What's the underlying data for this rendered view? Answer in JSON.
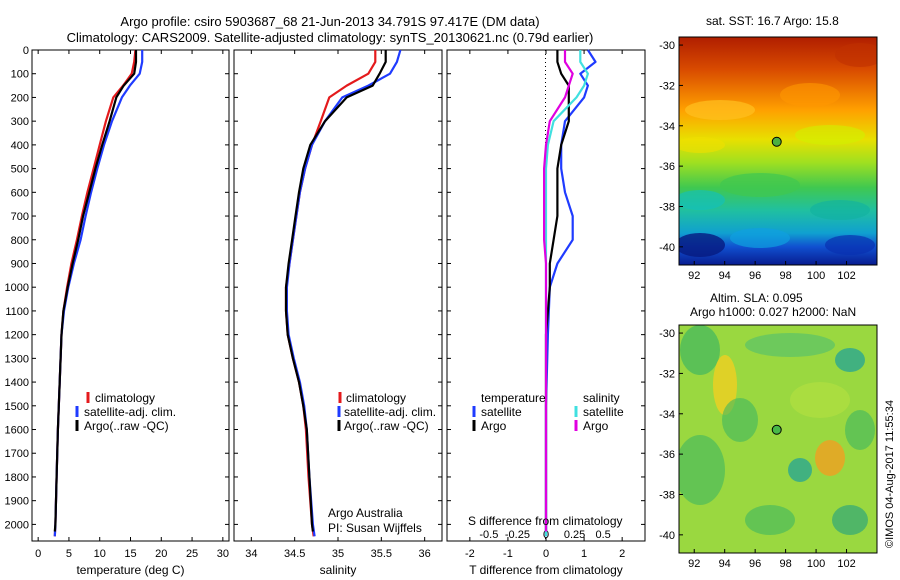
{
  "title_line1": "Argo profile: csiro 5903687_68 21-Jun-2013 34.791S 97.417E (DM data)",
  "title_line2": "Climatology: CARS2009. Satellite-adjusted climatology: synTS_20130621.nc (0.79d earlier)",
  "colors": {
    "climatology": "#e41a1c",
    "satellite": "#1f3bff",
    "argo": "#000000",
    "argo_salinity": "#e000e0",
    "satellite_salinity": "#40e0e0"
  },
  "legend_profile": [
    "climatology",
    "satellite-adj. clim.",
    "Argo(..raw -QC)"
  ],
  "credit_line1": "Argo Australia",
  "credit_line2": "PI: Susan Wijffels",
  "diff_legend": {
    "temperature": "temperature",
    "salinity": "salinity",
    "satellite": "satellite",
    "argo": "Argo"
  },
  "diff_xlabel_top": "S difference from climatology",
  "diff_xlabel_bottom": "T difference from climatology",
  "sst_title": "sat. SST: 16.7 Argo: 15.8",
  "sla_title_line1": "Altim. SLA: 0.095",
  "sla_title_line2": "Argo h1000: 0.027 h2000: NaN",
  "timestamp": "©IMOS 04-Aug-2017 11:55:34",
  "chart_data": [
    {
      "type": "line",
      "name": "temperature",
      "xlabel": "temperature (deg C)",
      "ylabel": "depth",
      "xlim": [
        -1,
        31
      ],
      "ylim": [
        2070,
        0
      ],
      "xticks": [
        0,
        5,
        10,
        15,
        20,
        25,
        30
      ],
      "yticks": [
        0,
        100,
        200,
        300,
        400,
        500,
        600,
        700,
        800,
        900,
        1000,
        1100,
        1200,
        1300,
        1400,
        1500,
        1600,
        1700,
        1800,
        1900,
        2000
      ],
      "series": [
        {
          "name": "climatology",
          "color": "#e41a1c",
          "points": [
            [
              15.8,
              0
            ],
            [
              15.6,
              50
            ],
            [
              15.2,
              100
            ],
            [
              13.8,
              150
            ],
            [
              12.2,
              200
            ],
            [
              11.0,
              300
            ],
            [
              10.0,
              400
            ],
            [
              9.0,
              500
            ],
            [
              8.0,
              600
            ],
            [
              7.1,
              700
            ],
            [
              6.3,
              800
            ],
            [
              5.4,
              900
            ],
            [
              4.7,
              1000
            ],
            [
              4.1,
              1100
            ],
            [
              3.8,
              1200
            ],
            [
              3.5,
              1400
            ],
            [
              3.2,
              1600
            ],
            [
              3.0,
              1800
            ],
            [
              2.8,
              2000
            ],
            [
              2.7,
              2050
            ]
          ]
        },
        {
          "name": "satellite-adj. clim.",
          "color": "#1f3bff",
          "points": [
            [
              16.9,
              0
            ],
            [
              16.9,
              50
            ],
            [
              16.5,
              100
            ],
            [
              14.9,
              150
            ],
            [
              13.6,
              200
            ],
            [
              12.0,
              300
            ],
            [
              10.7,
              400
            ],
            [
              9.6,
              500
            ],
            [
              8.6,
              600
            ],
            [
              7.7,
              700
            ],
            [
              6.9,
              800
            ],
            [
              5.8,
              900
            ],
            [
              4.9,
              1000
            ],
            [
              4.2,
              1100
            ],
            [
              3.8,
              1200
            ],
            [
              3.5,
              1400
            ],
            [
              3.2,
              1600
            ],
            [
              3.0,
              1800
            ],
            [
              2.8,
              2000
            ],
            [
              2.7,
              2050
            ]
          ]
        },
        {
          "name": "Argo(..raw -QC)",
          "color": "#000000",
          "points": [
            [
              15.9,
              0
            ],
            [
              15.9,
              50
            ],
            [
              15.6,
              100
            ],
            [
              13.9,
              150
            ],
            [
              12.7,
              200
            ],
            [
              11.6,
              300
            ],
            [
              10.4,
              400
            ],
            [
              9.3,
              500
            ],
            [
              8.3,
              600
            ],
            [
              7.3,
              700
            ],
            [
              6.5,
              800
            ],
            [
              5.6,
              900
            ],
            [
              4.8,
              1000
            ],
            [
              4.1,
              1100
            ],
            [
              3.8,
              1200
            ],
            [
              3.5,
              1400
            ],
            [
              3.2,
              1600
            ],
            [
              3.0,
              1800
            ],
            [
              2.8,
              2000
            ],
            [
              2.7,
              2030
            ]
          ]
        }
      ]
    },
    {
      "type": "line",
      "name": "salinity",
      "xlabel": "salinity",
      "ylabel": "depth",
      "xlim": [
        33.8,
        36.2
      ],
      "ylim": [
        2070,
        0
      ],
      "xticks": [
        34,
        34.5,
        35,
        35.5,
        36
      ],
      "series": [
        {
          "name": "climatology",
          "color": "#e41a1c",
          "points": [
            [
              35.43,
              0
            ],
            [
              35.43,
              50
            ],
            [
              35.35,
              100
            ],
            [
              35.1,
              150
            ],
            [
              34.9,
              200
            ],
            [
              34.8,
              300
            ],
            [
              34.7,
              400
            ],
            [
              34.62,
              500
            ],
            [
              34.56,
              600
            ],
            [
              34.52,
              700
            ],
            [
              34.48,
              800
            ],
            [
              34.44,
              900
            ],
            [
              34.4,
              1000
            ],
            [
              34.4,
              1100
            ],
            [
              34.42,
              1200
            ],
            [
              34.48,
              1300
            ],
            [
              34.55,
              1400
            ],
            [
              34.6,
              1500
            ],
            [
              34.63,
              1600
            ],
            [
              34.66,
              1800
            ],
            [
              34.7,
              2000
            ],
            [
              34.72,
              2050
            ]
          ]
        },
        {
          "name": "satellite-adj. clim.",
          "color": "#1f3bff",
          "points": [
            [
              35.72,
              0
            ],
            [
              35.68,
              50
            ],
            [
              35.6,
              100
            ],
            [
              35.35,
              150
            ],
            [
              35.05,
              200
            ],
            [
              34.85,
              300
            ],
            [
              34.7,
              400
            ],
            [
              34.62,
              500
            ],
            [
              34.56,
              600
            ],
            [
              34.52,
              700
            ],
            [
              34.48,
              800
            ],
            [
              34.44,
              900
            ],
            [
              34.41,
              1000
            ],
            [
              34.41,
              1100
            ],
            [
              34.43,
              1200
            ],
            [
              34.49,
              1300
            ],
            [
              34.56,
              1400
            ],
            [
              34.61,
              1500
            ],
            [
              34.64,
              1600
            ],
            [
              34.67,
              1800
            ],
            [
              34.71,
              2000
            ],
            [
              34.73,
              2050
            ]
          ]
        },
        {
          "name": "Argo(..raw -QC)",
          "color": "#000000",
          "points": [
            [
              35.55,
              0
            ],
            [
              35.55,
              50
            ],
            [
              35.48,
              100
            ],
            [
              35.4,
              150
            ],
            [
              35.1,
              200
            ],
            [
              34.85,
              300
            ],
            [
              34.68,
              400
            ],
            [
              34.6,
              500
            ],
            [
              34.55,
              600
            ],
            [
              34.51,
              700
            ],
            [
              34.47,
              800
            ],
            [
              34.43,
              900
            ],
            [
              34.4,
              1000
            ],
            [
              34.4,
              1100
            ],
            [
              34.42,
              1200
            ],
            [
              34.48,
              1300
            ],
            [
              34.55,
              1400
            ],
            [
              34.6,
              1500
            ],
            [
              34.64,
              1600
            ],
            [
              34.67,
              1800
            ],
            [
              34.7,
              2000
            ],
            [
              34.71,
              2030
            ]
          ]
        }
      ]
    },
    {
      "type": "line",
      "name": "difference from climatology",
      "xlabel_top": "S difference from climatology",
      "xlabel": "T difference from climatology",
      "xlim": [
        -2.6,
        2.6
      ],
      "ylim": [
        2070,
        0
      ],
      "xticks": [
        -2,
        -1,
        0,
        1,
        2
      ],
      "top_ticks": [
        {
          "value": -1.5,
          "label": "-0.5"
        },
        {
          "value": -0.75,
          "label": "-0.25"
        },
        {
          "value": 0,
          "label": "0"
        },
        {
          "value": 0.75,
          "label": "0.25"
        },
        {
          "value": 1.5,
          "label": "0.5"
        }
      ],
      "series": [
        {
          "name": "temperature satellite",
          "color": "#1f3bff",
          "points": [
            [
              1.1,
              0
            ],
            [
              1.3,
              50
            ],
            [
              0.9,
              100
            ],
            [
              1.1,
              150
            ],
            [
              1.0,
              200
            ],
            [
              0.5,
              300
            ],
            [
              0.4,
              400
            ],
            [
              0.4,
              500
            ],
            [
              0.5,
              600
            ],
            [
              0.7,
              700
            ],
            [
              0.7,
              800
            ],
            [
              0.3,
              900
            ],
            [
              0.1,
              1000
            ],
            [
              0.05,
              1200
            ],
            [
              0.0,
              1500
            ],
            [
              0.0,
              2000
            ],
            [
              0.0,
              2050
            ]
          ]
        },
        {
          "name": "temperature Argo",
          "color": "#000000",
          "points": [
            [
              0.3,
              0
            ],
            [
              0.3,
              50
            ],
            [
              0.4,
              100
            ],
            [
              0.6,
              150
            ],
            [
              0.6,
              200
            ],
            [
              0.6,
              300
            ],
            [
              0.4,
              400
            ],
            [
              0.3,
              500
            ],
            [
              0.3,
              600
            ],
            [
              0.3,
              700
            ],
            [
              0.2,
              800
            ],
            [
              0.1,
              900
            ],
            [
              0.1,
              1000
            ],
            [
              0.0,
              1200
            ],
            [
              0.0,
              2000
            ],
            [
              0.0,
              2030
            ]
          ]
        },
        {
          "name": "salinity satellite",
          "color": "#40e0e0",
          "points": [
            [
              0.9,
              0
            ],
            [
              0.9,
              50
            ],
            [
              1.1,
              100
            ],
            [
              1.0,
              150
            ],
            [
              0.8,
              200
            ],
            [
              0.2,
              300
            ],
            [
              0.05,
              400
            ],
            [
              0.0,
              500
            ],
            [
              0.0,
              700
            ],
            [
              0.0,
              900
            ],
            [
              0.0,
              1200
            ],
            [
              0.0,
              2000
            ],
            [
              0.0,
              2050
            ]
          ]
        },
        {
          "name": "salinity Argo",
          "color": "#e000e0",
          "points": [
            [
              0.5,
              0
            ],
            [
              0.5,
              50
            ],
            [
              0.7,
              100
            ],
            [
              0.6,
              150
            ],
            [
              0.5,
              200
            ],
            [
              0.1,
              300
            ],
            [
              0.0,
              400
            ],
            [
              -0.05,
              500
            ],
            [
              -0.05,
              600
            ],
            [
              -0.05,
              700
            ],
            [
              -0.05,
              800
            ],
            [
              0.0,
              900
            ],
            [
              0.0,
              1000
            ],
            [
              0.0,
              2000
            ],
            [
              0.0,
              2030
            ]
          ]
        }
      ]
    },
    {
      "type": "heatmap",
      "name": "sat. SST map",
      "title": "sat. SST: 16.7 Argo: 15.8",
      "xlim": [
        91,
        104
      ],
      "ylim": [
        -40.9,
        -29.6
      ],
      "xticks": [
        92,
        94,
        96,
        98,
        100,
        102
      ],
      "yticks": [
        -30,
        -32,
        -34,
        -36,
        -38,
        -40
      ],
      "marker": [
        97.417,
        -34.791
      ]
    },
    {
      "type": "heatmap",
      "name": "Altim. SLA map",
      "title": "Altim. SLA: 0.095",
      "xlim": [
        91,
        104
      ],
      "ylim": [
        -40.9,
        -29.6
      ],
      "xticks": [
        92,
        94,
        96,
        98,
        100,
        102
      ],
      "yticks": [
        -30,
        -32,
        -34,
        -36,
        -38,
        -40
      ],
      "marker": [
        97.417,
        -34.791
      ]
    }
  ]
}
